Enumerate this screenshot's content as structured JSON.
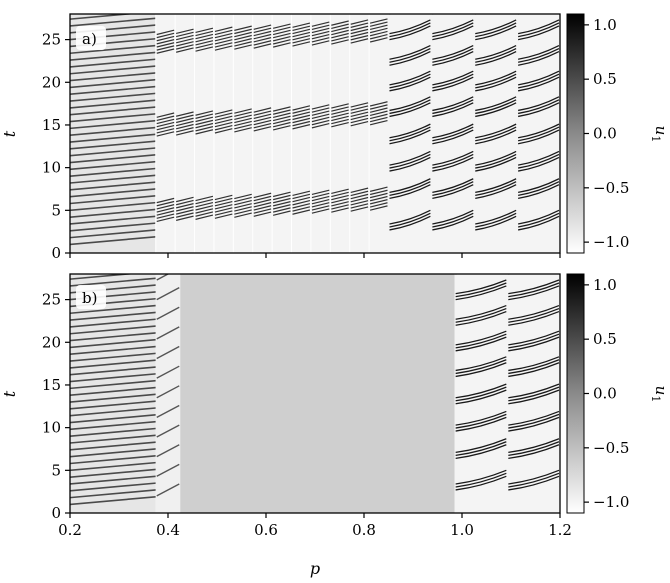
{
  "chart_data": [
    {
      "type": "heatmap",
      "panel_label": "a)",
      "xlim": [
        0.2,
        1.2
      ],
      "ylim": [
        0,
        28
      ],
      "xticks": [],
      "yticks": [
        0,
        5,
        10,
        15,
        20,
        25
      ],
      "ylabel": "t",
      "xlabel": "",
      "colorbar": {
        "label": "u1",
        "label_main": "u",
        "label_sub": "1",
        "range": [
          -1.1,
          1.1
        ],
        "ticks": [
          1.0,
          0.5,
          0.0,
          -0.5,
          -1.0
        ],
        "tick_labels": [
          "1.0",
          "0.5",
          "0.0",
          "−0.5",
          "−1.0"
        ],
        "colormap": "gray_r"
      },
      "segments": [
        {
          "p_start": 0.2,
          "p_end": 0.375,
          "regime": "dense-oscillations",
          "t_first": 1.0,
          "period": 0.8,
          "bg": "#e6e6e6"
        },
        {
          "p_start": 0.375,
          "p_end": 0.85,
          "regime": "bursting",
          "bursts": [
            4.8,
            14.8,
            24.5
          ],
          "burst_width": 2.2,
          "lines_per_burst": 7,
          "bg": "#f4f4f4"
        },
        {
          "p_start": 0.85,
          "p_end": 1.2,
          "regime": "periodic-bursts",
          "bursts": [
            2.7,
            6.4,
            9.6,
            12.8,
            16.0,
            19.0,
            22.0,
            25.0,
            28.0
          ],
          "bg": "#f4f4f4"
        }
      ]
    },
    {
      "type": "heatmap",
      "panel_label": "b)",
      "xlim": [
        0.2,
        1.2
      ],
      "ylim": [
        0,
        28
      ],
      "xticks": [
        0.2,
        0.4,
        0.6,
        0.8,
        1.0,
        1.2
      ],
      "xtick_labels": [
        "0.2",
        "0.4",
        "0.6",
        "0.8",
        "1.0",
        "1.2"
      ],
      "yticks": [
        0,
        5,
        10,
        15,
        20,
        25
      ],
      "ylabel": "t",
      "xlabel": "p",
      "colorbar": {
        "label": "u1",
        "label_main": "u",
        "label_sub": "1",
        "range": [
          -1.1,
          1.1
        ],
        "ticks": [
          1.0,
          0.5,
          0.0,
          -0.5,
          -1.0
        ],
        "tick_labels": [
          "1.0",
          "0.5",
          "0.0",
          "−0.5",
          "−1.0"
        ],
        "colormap": "gray_r"
      },
      "segments": [
        {
          "p_start": 0.2,
          "p_end": 0.375,
          "regime": "dense-oscillations",
          "t_first": 1.0,
          "period": 0.8,
          "bg": "#e6e6e6"
        },
        {
          "p_start": 0.375,
          "p_end": 0.425,
          "regime": "transition",
          "bg": "#f0f0f0"
        },
        {
          "p_start": 0.425,
          "p_end": 0.985,
          "regime": "uniform",
          "value": 0.0,
          "bg": "#cfcfcf"
        },
        {
          "p_start": 0.985,
          "p_end": 1.2,
          "regime": "periodic-bursts",
          "bursts": [
            2.7,
            6.4,
            9.6,
            12.8,
            16.0,
            19.0,
            22.0,
            25.0,
            28.0
          ],
          "bg": "#f4f4f4"
        }
      ]
    }
  ]
}
